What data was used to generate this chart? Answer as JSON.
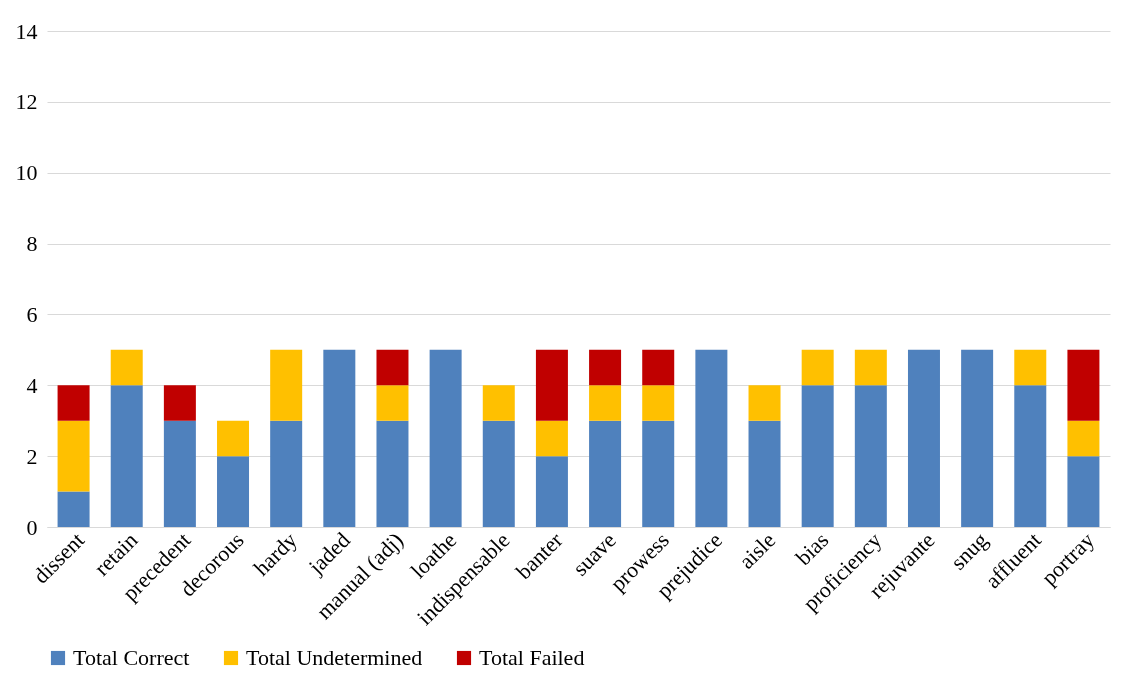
{
  "chart_data": {
    "type": "bar",
    "stacked": true,
    "categories": [
      "dissent",
      "retain",
      "precedent",
      "decorous",
      "hardy",
      "jaded",
      "manual (adj)",
      "loathe",
      "indispensable",
      "banter",
      "suave",
      "prowess",
      "prejudice",
      "aisle",
      "bias",
      "proficiency",
      "rejuvante",
      "snug",
      "affluent",
      "portray"
    ],
    "series": [
      {
        "name": "Total Correct",
        "color": "#4f81bd",
        "values": [
          1,
          4,
          3,
          2,
          3,
          5,
          3,
          5,
          3,
          2,
          3,
          3,
          5,
          3,
          4,
          4,
          5,
          5,
          4,
          2
        ]
      },
      {
        "name": "Total Undetermined",
        "color": "#ffc000",
        "values": [
          2,
          1,
          0,
          1,
          2,
          0,
          1,
          0,
          1,
          1,
          1,
          1,
          0,
          1,
          1,
          1,
          0,
          0,
          1,
          1
        ]
      },
      {
        "name": "Total Failed",
        "color": "#c00000",
        "values": [
          1,
          0,
          1,
          0,
          0,
          0,
          1,
          0,
          0,
          2,
          1,
          1,
          0,
          0,
          0,
          0,
          0,
          0,
          0,
          2
        ]
      }
    ],
    "ylim": [
      0,
      14
    ],
    "yticks": [
      0,
      2,
      4,
      6,
      8,
      10,
      12,
      14
    ],
    "grid": "y",
    "legend": "bottom"
  }
}
